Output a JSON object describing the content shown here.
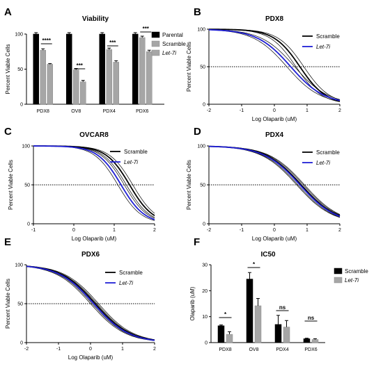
{
  "colors": {
    "parental": "#000000",
    "scramble_bar": "#a6a6a6",
    "let7i_bar": "#a6a6a6",
    "scramble_line": "#000000",
    "let7i_line": "#1f1fd6",
    "ci_line": "#000000"
  },
  "chart_data": [
    {
      "id": "A",
      "type": "bar",
      "panel_label": "A",
      "title": "Viability",
      "ylabel": "Percent Viable Cells",
      "ylim": [
        0,
        100
      ],
      "yticks": [
        "0",
        "50",
        "100"
      ],
      "categories": [
        "PDX8",
        "OV8",
        "PDX4",
        "PDX6"
      ],
      "series": [
        {
          "name": "Parental",
          "values": [
            100,
            100,
            100,
            100
          ],
          "errors": [
            2,
            2,
            2,
            2
          ]
        },
        {
          "name": "Scramble",
          "values": [
            77,
            49,
            78,
            95
          ],
          "errors": [
            2,
            2,
            2,
            2
          ]
        },
        {
          "name": "Let-7i",
          "values": [
            57,
            32,
            60,
            75
          ],
          "errors": [
            1,
            2,
            2,
            2
          ]
        }
      ],
      "significance": [
        "****",
        "***",
        "***",
        "***"
      ],
      "legend": [
        "Parental",
        "Scramble",
        "Let-7i"
      ],
      "legend_position": "top-right"
    },
    {
      "id": "B",
      "type": "line",
      "panel_label": "B",
      "title": "PDX8",
      "xlabel": "Log Olaparib (uM)",
      "ylabel": "Percent Viable Cells",
      "xlim": [
        -2,
        2
      ],
      "ylim": [
        0,
        100
      ],
      "xticks": [
        "-2",
        "-1",
        "0",
        "1",
        "2"
      ],
      "yticks": [
        "0",
        "50",
        "100"
      ],
      "reference_line_y": 50,
      "series": [
        {
          "name": "Scramble",
          "top": 100,
          "log_ic50": 0.78,
          "hill": 1.1
        },
        {
          "name": "Let-7i",
          "top": 100,
          "log_ic50": 0.5,
          "hill": 0.85
        }
      ],
      "legend": [
        "Scramble",
        "Let-7i"
      ],
      "legend_position": "top-right"
    },
    {
      "id": "C",
      "type": "line",
      "panel_label": "C",
      "title": "OVCAR8",
      "xlabel": "Log Olaparib (uM)",
      "ylabel": "Percent Viable Cells",
      "xlim": [
        -1,
        2
      ],
      "ylim": [
        0,
        100
      ],
      "xticks": [
        "-1",
        "0",
        "1",
        "2"
      ],
      "yticks": [
        "0",
        "50",
        "100"
      ],
      "reference_line_y": 50,
      "series": [
        {
          "name": "Scramble",
          "top": 100,
          "log_ic50": 1.38,
          "hill": 1.5
        },
        {
          "name": "Let-7i",
          "top": 100,
          "log_ic50": 1.17,
          "hill": 1.5
        }
      ],
      "legend": [
        "Scramble",
        "Let-7i"
      ],
      "legend_position": "top-right"
    },
    {
      "id": "D",
      "type": "line",
      "panel_label": "D",
      "title": "PDX4",
      "xlabel": "Log Olaparib (uM)",
      "ylabel": "Percent Viable Cells",
      "xlim": [
        -2,
        2
      ],
      "ylim": [
        0,
        100
      ],
      "xticks": [
        "-2",
        "-1",
        "0",
        "1",
        "2"
      ],
      "yticks": [
        "0",
        "50",
        "100"
      ],
      "reference_line_y": 50,
      "series": [
        {
          "name": "Scramble",
          "top": 100,
          "log_ic50": 0.82,
          "hill": 0.8
        },
        {
          "name": "Let-7i",
          "top": 100,
          "log_ic50": 0.78,
          "hill": 0.8
        }
      ],
      "legend": [
        "Scramble",
        "Let-7i"
      ],
      "legend_position": "top-right"
    },
    {
      "id": "E",
      "type": "line",
      "panel_label": "E",
      "title": "PDX6",
      "xlabel": "Log Olaparib (uM)",
      "ylabel": "Percent Viable Cells",
      "xlim": [
        -2,
        2
      ],
      "ylim": [
        0,
        100
      ],
      "xticks": [
        "-2",
        "-1",
        "0",
        "1",
        "2"
      ],
      "yticks": [
        "0",
        "50",
        "100"
      ],
      "reference_line_y": 50,
      "series": [
        {
          "name": "Scramble",
          "top": 100,
          "log_ic50": 0.15,
          "hill": 0.8
        },
        {
          "name": "Let-7i",
          "top": 100,
          "log_ic50": 0.1,
          "hill": 0.8
        }
      ],
      "legend": [
        "Scramble",
        "Let-7i"
      ],
      "legend_position": "top-right"
    },
    {
      "id": "F",
      "type": "bar",
      "panel_label": "F",
      "title": "IC50",
      "ylabel": "Olaparib (uM)",
      "ylim": [
        0,
        30
      ],
      "yticks": [
        "0",
        "10",
        "20",
        "30"
      ],
      "categories": [
        "PDX8",
        "OV8",
        "PDX4",
        "PDX6"
      ],
      "series": [
        {
          "name": "Scramble",
          "values": [
            6.5,
            24.5,
            7.0,
            1.5
          ],
          "errors": [
            0.3,
            2.5,
            3.5,
            0.2
          ]
        },
        {
          "name": "Let-7i",
          "values": [
            3.2,
            14.2,
            6.0,
            1.2
          ],
          "errors": [
            1.0,
            2.8,
            2.5,
            0.3
          ]
        }
      ],
      "significance": [
        "*",
        "*",
        "ns",
        "ns"
      ],
      "legend": [
        "Scramble",
        "Let-7i"
      ],
      "legend_position": "top-right"
    }
  ]
}
